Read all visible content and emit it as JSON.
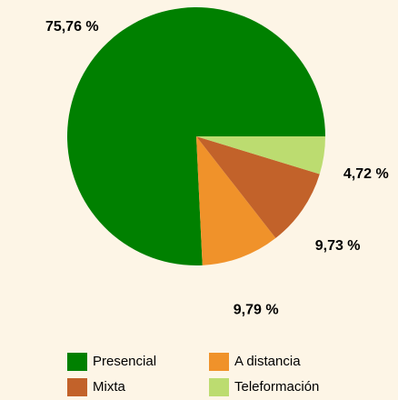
{
  "chart_data": {
    "type": "pie",
    "categories": [
      "Presencial",
      "A distancia",
      "Mixta",
      "Teleformación"
    ],
    "values": [
      75.76,
      9.79,
      9.73,
      4.72
    ],
    "value_labels": [
      "75,76 %",
      "9,79 %",
      "9,73 %",
      "4,72 %"
    ],
    "colors": [
      "#008000",
      "#f0922a",
      "#c2622a",
      "#bcdc70"
    ]
  }
}
